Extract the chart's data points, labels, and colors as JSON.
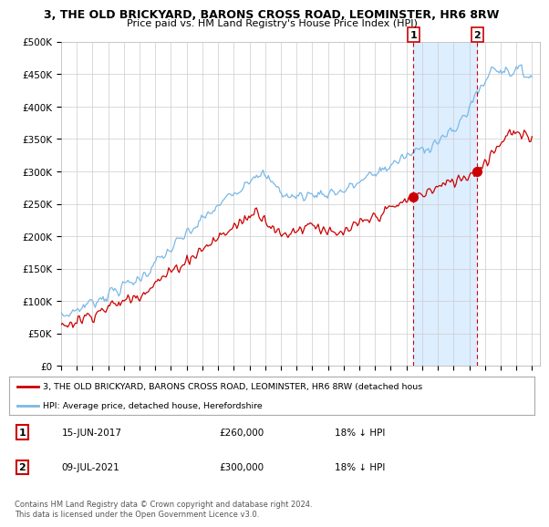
{
  "title1": "3, THE OLD BRICKYARD, BARONS CROSS ROAD, LEOMINSTER, HR6 8RW",
  "title2": "Price paid vs. HM Land Registry's House Price Index (HPI)",
  "ylabel_ticks": [
    "£0",
    "£50K",
    "£100K",
    "£150K",
    "£200K",
    "£250K",
    "£300K",
    "£350K",
    "£400K",
    "£450K",
    "£500K"
  ],
  "ytick_values": [
    0,
    50000,
    100000,
    150000,
    200000,
    250000,
    300000,
    350000,
    400000,
    450000,
    500000
  ],
  "ylim": [
    0,
    500000
  ],
  "hpi_color": "#7ab8e8",
  "price_color": "#cc0000",
  "shade_color": "#ddeeff",
  "legend1": "3, THE OLD BRICKYARD, BARONS CROSS ROAD, LEOMINSTER, HR6 8RW (detached hous",
  "legend2": "HPI: Average price, detached house, Herefordshire",
  "ann1_date": "15-JUN-2017",
  "ann1_price": "£260,000",
  "ann1_hpi": "18% ↓ HPI",
  "ann2_date": "09-JUL-2021",
  "ann2_price": "£300,000",
  "ann2_hpi": "18% ↓ HPI",
  "t1": 2017.45,
  "t2": 2021.52,
  "v1": 260000,
  "v2": 300000,
  "footer": "Contains HM Land Registry data © Crown copyright and database right 2024.\nThis data is licensed under the Open Government Licence v3.0.",
  "background_plot": "#ffffff",
  "background_fig": "#ffffff"
}
